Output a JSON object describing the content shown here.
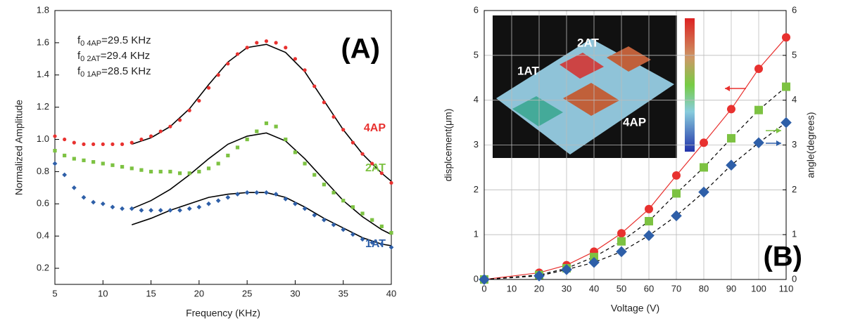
{
  "chart_data": [
    {
      "type": "scatter",
      "label": "(A)",
      "x_label": "Frequency (KHz)",
      "y_label": "Normalized Amplitude",
      "xlim": [
        5,
        40
      ],
      "xticks": [
        5,
        10,
        15,
        20,
        25,
        30,
        35,
        40
      ],
      "ylim": [
        0.1,
        1.8
      ],
      "yticks": [
        0.2,
        0.4,
        0.6,
        0.8,
        {
          "value": 1.0,
          "label": "1.0"
        },
        1.2,
        1.4,
        1.6,
        1.8
      ],
      "grid": false,
      "annotations": [
        {
          "text": "f",
          "sub": "0 4AP",
          "rest": "=29.5 KHz"
        },
        {
          "text": "f",
          "sub": "0 2AT",
          "rest": "=29.4 KHz"
        },
        {
          "text": "f",
          "sub": "0 1AP",
          "rest": "=28.5 KHz"
        }
      ],
      "x": [
        5,
        6,
        7,
        8,
        9,
        10,
        11,
        12,
        13,
        14,
        15,
        16,
        17,
        18,
        19,
        20,
        21,
        22,
        23,
        24,
        25,
        26,
        27,
        28,
        29,
        30,
        31,
        32,
        33,
        34,
        35,
        36,
        37,
        38,
        39,
        40
      ],
      "series": [
        {
          "name": "4AP",
          "color": "#e8312f",
          "marker": "circle",
          "values": [
            1.02,
            1.0,
            0.98,
            0.97,
            0.97,
            0.97,
            0.97,
            0.97,
            0.98,
            1.0,
            1.02,
            1.05,
            1.08,
            1.12,
            1.18,
            1.24,
            1.32,
            1.4,
            1.47,
            1.53,
            1.57,
            1.6,
            1.61,
            1.6,
            1.57,
            1.5,
            1.43,
            1.33,
            1.23,
            1.14,
            1.06,
            0.98,
            0.91,
            0.85,
            0.79,
            0.73
          ]
        },
        {
          "name": "2AT",
          "color": "#7dc242",
          "marker": "square",
          "values": [
            0.93,
            0.9,
            0.88,
            0.87,
            0.86,
            0.85,
            0.84,
            0.83,
            0.82,
            0.81,
            0.8,
            0.8,
            0.8,
            0.79,
            0.79,
            0.8,
            0.82,
            0.85,
            0.9,
            0.95,
            1.0,
            1.05,
            1.1,
            1.08,
            1.0,
            0.92,
            0.85,
            0.78,
            0.72,
            0.67,
            0.62,
            0.58,
            0.54,
            0.5,
            0.46,
            0.42
          ]
        },
        {
          "name": "1AT",
          "color": "#2e5fa8",
          "marker": "diamond",
          "values": [
            0.85,
            0.78,
            0.7,
            0.64,
            0.61,
            0.6,
            0.58,
            0.57,
            0.57,
            0.56,
            0.56,
            0.56,
            0.56,
            0.56,
            0.57,
            0.58,
            0.6,
            0.62,
            0.64,
            0.66,
            0.67,
            0.67,
            0.67,
            0.66,
            0.63,
            0.6,
            0.57,
            0.53,
            0.5,
            0.47,
            0.44,
            0.41,
            0.38,
            0.36,
            0.35,
            0.33
          ]
        }
      ],
      "fit_x": [
        13,
        15,
        17,
        19,
        21,
        23,
        25,
        27,
        29,
        31,
        33,
        35,
        37,
        39,
        40
      ],
      "fits": [
        {
          "color": "#000000",
          "values": [
            0.97,
            1.01,
            1.08,
            1.19,
            1.34,
            1.48,
            1.57,
            1.59,
            1.54,
            1.42,
            1.24,
            1.06,
            0.91,
            0.79,
            0.74
          ]
        },
        {
          "color": "#000000",
          "values": [
            0.57,
            0.62,
            0.69,
            0.78,
            0.88,
            0.97,
            1.02,
            1.04,
            0.99,
            0.88,
            0.75,
            0.62,
            0.52,
            0.44,
            0.41
          ]
        },
        {
          "color": "#000000",
          "values": [
            0.47,
            0.51,
            0.56,
            0.6,
            0.64,
            0.66,
            0.67,
            0.67,
            0.64,
            0.58,
            0.51,
            0.45,
            0.39,
            0.35,
            0.34
          ]
        }
      ]
    },
    {
      "type": "line",
      "label": "(B)",
      "x_label": "Voltage (V)",
      "y_label": "displcement(μm)",
      "y2_label": "angle(degrees)",
      "xlim": [
        0,
        110
      ],
      "xticks": [
        0,
        10,
        20,
        30,
        40,
        50,
        60,
        70,
        80,
        90,
        100,
        110
      ],
      "ylim": [
        0,
        6
      ],
      "yticks": [
        0,
        1,
        2,
        3,
        4,
        5,
        6
      ],
      "y2lim": [
        0,
        6
      ],
      "y2ticks": [
        0,
        1,
        2,
        3,
        4,
        5,
        6
      ],
      "grid": true,
      "inset": {
        "labels": [
          "2AT",
          "1AT",
          "4AP"
        ]
      },
      "x": [
        0,
        20,
        30,
        40,
        50,
        60,
        70,
        80,
        90,
        100,
        110
      ],
      "series": [
        {
          "color": "#e8312f",
          "marker": "circle",
          "line_color": "#e8312f",
          "dashed": false,
          "values": [
            0,
            0.15,
            0.32,
            0.62,
            1.03,
            1.57,
            2.32,
            3.05,
            3.8,
            4.7,
            5.4
          ]
        },
        {
          "color": "#7dc242",
          "marker": "square",
          "line_color": "#000000",
          "dashed": true,
          "axis": "y2",
          "values": [
            0,
            0.1,
            0.25,
            0.5,
            0.85,
            1.3,
            1.92,
            2.5,
            3.15,
            3.78,
            4.3
          ]
        },
        {
          "color": "#2e5fa8",
          "marker": "diamond",
          "line_color": "#000000",
          "dashed": true,
          "axis": "y2",
          "values": [
            0,
            0.08,
            0.22,
            0.38,
            0.62,
            0.98,
            1.42,
            1.95,
            2.55,
            3.05,
            3.5
          ]
        }
      ]
    }
  ]
}
